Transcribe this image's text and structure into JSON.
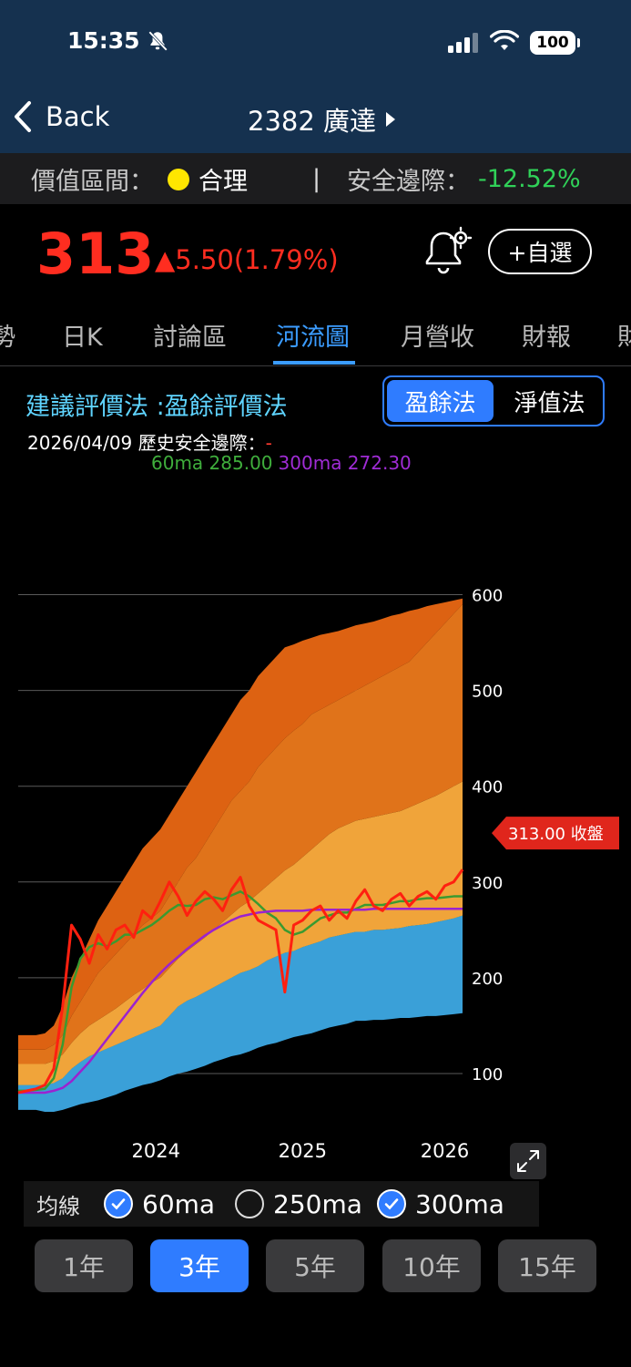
{
  "status": {
    "time": "15:35",
    "battery": "100"
  },
  "nav": {
    "back": "Back",
    "title": "2382 廣達"
  },
  "valuation": {
    "label": "價值區間：",
    "value": "合理",
    "separator": "|",
    "margin_label": "安全邊際：",
    "margin_value": "-12.52%"
  },
  "quote": {
    "price": "313",
    "change": "▲5.50(1.79%)",
    "watch": "+自選"
  },
  "tabs": [
    "勢",
    "日K",
    "討論區",
    "河流圖",
    "月營收",
    "財報",
    "財"
  ],
  "active_tab": "河流圖",
  "method": {
    "label": "建議評價法 :盈餘評價法",
    "options": [
      "盈餘法",
      "淨值法"
    ],
    "selected": "盈餘法"
  },
  "info": {
    "date_prefix": "2026/04/09 歷史安全邊際：",
    "date_suffix": "-",
    "ma60": "60ma 285.00",
    "ma300": "300ma 272.30"
  },
  "chart_data": {
    "type": "area",
    "x_ticks": [
      "2024",
      "2025",
      "2026"
    ],
    "y_ticks": [
      100,
      200,
      300,
      400,
      500,
      600
    ],
    "ylim": [
      60,
      650
    ],
    "bands_legend_colors": [
      "#3aa0d8",
      "#e2d60f",
      "#f0a43a",
      "#e0731a",
      "#dd6212"
    ],
    "price_color": "#ff2010",
    "ma60_color": "#3a9a30",
    "ma300_color": "#9b22d0",
    "closing_label": "313.00 收盤",
    "closing_value": 313.0,
    "x": [
      0,
      0.02,
      0.04,
      0.06,
      0.08,
      0.1,
      0.12,
      0.14,
      0.16,
      0.18,
      0.2,
      0.22,
      0.24,
      0.26,
      0.28,
      0.3,
      0.32,
      0.34,
      0.36,
      0.38,
      0.4,
      0.42,
      0.44,
      0.46,
      0.48,
      0.5,
      0.52,
      0.54,
      0.56,
      0.58,
      0.6,
      0.62,
      0.64,
      0.66,
      0.68,
      0.7,
      0.72,
      0.74,
      0.76,
      0.78,
      0.8,
      0.82,
      0.84,
      0.86,
      0.88,
      0.9,
      0.92,
      0.94,
      0.96,
      0.98,
      1.0
    ],
    "band_base": [
      72,
      72,
      72,
      70,
      70,
      72,
      75,
      78,
      80,
      82,
      85,
      88,
      92,
      95,
      98,
      100,
      103,
      107,
      110,
      112,
      115,
      118,
      122,
      125,
      128,
      130,
      133,
      137,
      140,
      142,
      145,
      148,
      150,
      152,
      155,
      158,
      160,
      162,
      165,
      165,
      166,
      166,
      167,
      168,
      168,
      169,
      170,
      170,
      171,
      172,
      173
    ],
    "band_1": [
      88,
      88,
      88,
      88,
      90,
      95,
      105,
      112,
      118,
      122,
      126,
      130,
      134,
      138,
      142,
      146,
      150,
      160,
      170,
      176,
      180,
      185,
      190,
      195,
      200,
      205,
      208,
      212,
      218,
      222,
      226,
      228,
      232,
      235,
      238,
      242,
      244,
      246,
      248,
      248,
      250,
      250,
      251,
      252,
      254,
      255,
      256,
      258,
      260,
      262,
      265
    ],
    "band_2": [
      110,
      110,
      110,
      110,
      113,
      120,
      132,
      142,
      150,
      156,
      162,
      168,
      175,
      182,
      188,
      195,
      200,
      210,
      220,
      228,
      235,
      242,
      250,
      258,
      266,
      274,
      280,
      288,
      296,
      304,
      312,
      318,
      326,
      334,
      342,
      350,
      356,
      360,
      364,
      366,
      368,
      370,
      372,
      374,
      378,
      382,
      386,
      390,
      395,
      400,
      405
    ],
    "band_3": [
      125,
      125,
      125,
      125,
      130,
      140,
      160,
      175,
      190,
      205,
      215,
      225,
      235,
      245,
      255,
      262,
      270,
      285,
      300,
      315,
      325,
      340,
      355,
      370,
      385,
      395,
      405,
      420,
      430,
      440,
      450,
      458,
      465,
      475,
      480,
      485,
      490,
      495,
      500,
      505,
      510,
      515,
      520,
      525,
      530,
      540,
      550,
      560,
      570,
      580,
      590
    ],
    "band_4": [
      140,
      140,
      140,
      142,
      150,
      170,
      200,
      220,
      240,
      260,
      275,
      290,
      305,
      320,
      335,
      345,
      355,
      370,
      385,
      400,
      415,
      430,
      445,
      460,
      475,
      490,
      500,
      515,
      525,
      535,
      545,
      548,
      552,
      555,
      558,
      560,
      562,
      565,
      568,
      570,
      572,
      575,
      578,
      580,
      583,
      585,
      588,
      590,
      592,
      594,
      596
    ],
    "price": [
      80,
      82,
      84,
      88,
      105,
      170,
      255,
      240,
      215,
      245,
      230,
      250,
      255,
      242,
      270,
      262,
      280,
      300,
      285,
      265,
      280,
      290,
      282,
      270,
      292,
      305,
      275,
      260,
      255,
      250,
      185,
      255,
      260,
      270,
      275,
      260,
      270,
      262,
      280,
      292,
      275,
      270,
      282,
      288,
      275,
      285,
      290,
      282,
      296,
      300,
      313
    ],
    "ma60": [
      82,
      82,
      83,
      84,
      95,
      130,
      190,
      220,
      232,
      236,
      233,
      238,
      245,
      245,
      250,
      255,
      262,
      270,
      276,
      275,
      276,
      282,
      284,
      282,
      286,
      290,
      285,
      277,
      268,
      262,
      250,
      245,
      248,
      255,
      262,
      265,
      268,
      268,
      272,
      276,
      276,
      276,
      278,
      280,
      280,
      282,
      283,
      283,
      284,
      285,
      285
    ],
    "ma300": [
      80,
      80,
      80,
      80,
      82,
      85,
      92,
      102,
      112,
      124,
      136,
      148,
      160,
      172,
      184,
      195,
      205,
      214,
      222,
      230,
      237,
      244,
      250,
      255,
      260,
      264,
      266,
      268,
      269,
      270,
      270,
      270,
      270,
      271,
      271,
      271,
      271,
      271,
      271,
      271,
      272,
      272,
      272,
      272,
      272,
      272,
      272,
      272,
      272,
      272,
      272
    ]
  },
  "ma_toggles": {
    "title": "均線",
    "items": [
      {
        "label": "60ma",
        "on": true
      },
      {
        "label": "250ma",
        "on": false
      },
      {
        "label": "300ma",
        "on": true
      }
    ]
  },
  "ranges": [
    "1年",
    "3年",
    "5年",
    "10年",
    "15年"
  ],
  "active_range": "3年"
}
